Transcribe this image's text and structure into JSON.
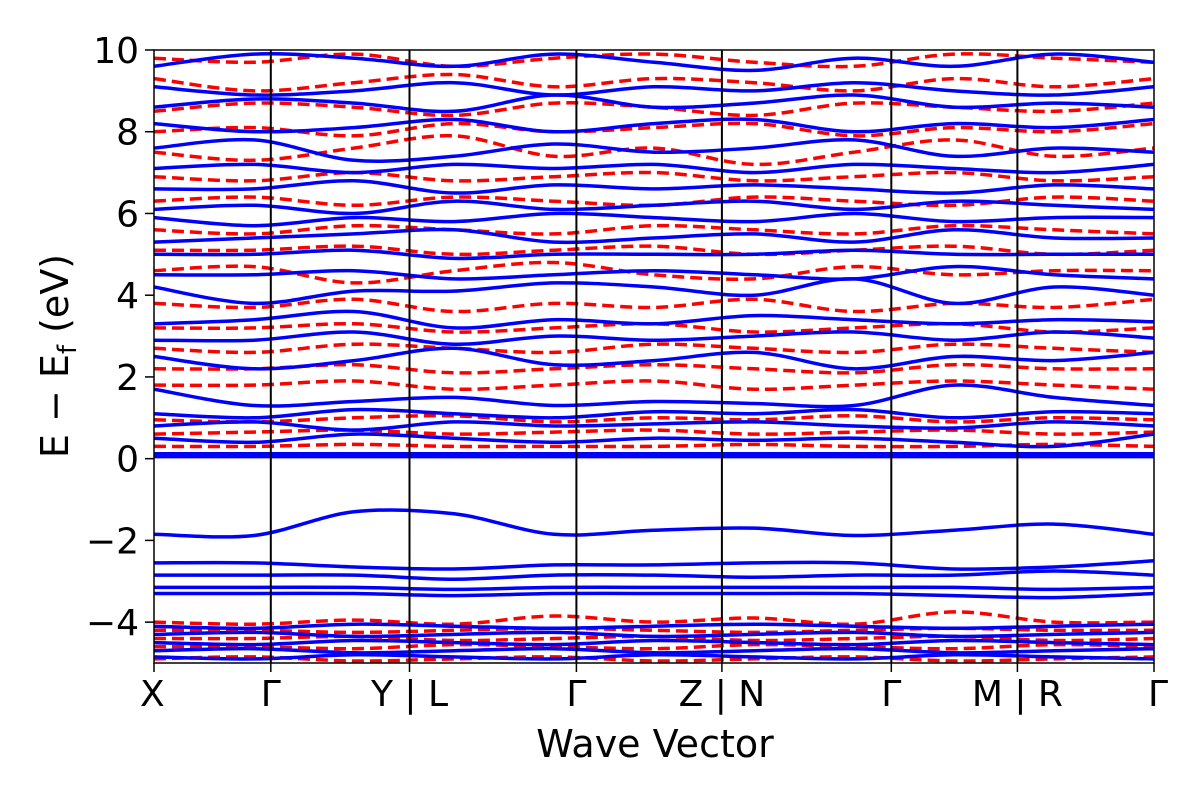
{
  "chart_data": {
    "type": "line",
    "xlabel": "Wave Vector",
    "ylabel_main": "E − E",
    "ylabel_sub": "f",
    "ylabel_unit": " (eV)",
    "ylim": [
      -5,
      10
    ],
    "yticks": [
      -4,
      -2,
      0,
      2,
      4,
      6,
      8,
      10
    ],
    "ytick_labels": [
      "−4",
      "−2",
      "0",
      "2",
      "4",
      "6",
      "8",
      "10"
    ],
    "xlim": [
      0,
      1
    ],
    "kpoint_labels": [
      {
        "x": 0.0,
        "text": "X"
      },
      {
        "x": 0.1168,
        "text": "Γ"
      },
      {
        "x": 0.2555,
        "text": "Y | L"
      },
      {
        "x": 0.4224,
        "text": "Γ"
      },
      {
        "x": 0.5679,
        "text": "Z | N"
      },
      {
        "x": 0.7373,
        "text": "Γ"
      },
      {
        "x": 0.8634,
        "text": "M | R"
      },
      {
        "x": 1.0,
        "text": "Γ"
      }
    ],
    "kpoint_lines": [
      0.1168,
      0.2555,
      0.4224,
      0.5679,
      0.7373,
      0.8634
    ],
    "series": [
      {
        "color": "#0000ff",
        "dash": "solid",
        "role": "spin-up"
      },
      {
        "color": "#ff0000",
        "dash": "dashed",
        "role": "spin-down"
      }
    ],
    "segments": [
      {
        "start": 0.0,
        "end": 0.1168
      },
      {
        "start": 0.1168,
        "end": 0.2555
      },
      {
        "start": 0.2555,
        "end": 0.4224
      },
      {
        "start": 0.4224,
        "end": 0.5679
      },
      {
        "start": 0.5679,
        "end": 0.7373
      },
      {
        "start": 0.7373,
        "end": 0.8634
      },
      {
        "start": 0.8634,
        "end": 1.0
      }
    ],
    "blue_valence_bands": [
      {
        "y": [
          -1.85,
          -1.88,
          -1.3,
          -1.35,
          -1.85,
          -1.75,
          -1.7,
          -1.88,
          -1.75,
          -1.6,
          -1.85
        ]
      },
      {
        "y": [
          -2.55,
          -2.55,
          -2.65,
          -2.7,
          -2.6,
          -2.6,
          -2.55,
          -2.55,
          -2.7,
          -2.65,
          -2.5
        ]
      },
      {
        "y": [
          -2.85,
          -2.85,
          -2.85,
          -2.95,
          -2.85,
          -2.85,
          -2.9,
          -2.85,
          -2.85,
          -2.75,
          -2.85
        ]
      },
      {
        "y": [
          -3.15,
          -3.15,
          -3.15,
          -3.2,
          -3.15,
          -3.15,
          -3.15,
          -3.15,
          -3.15,
          -3.2,
          -3.15
        ]
      },
      {
        "y": [
          -3.3,
          -3.3,
          -3.3,
          -3.35,
          -3.3,
          -3.3,
          -3.3,
          -3.3,
          -3.35,
          -3.4,
          -3.3
        ]
      }
    ],
    "bands_up": [
      {
        "y": [
          0.05,
          0.05,
          0.05,
          0.05,
          0.05,
          0.05,
          0.05,
          0.05,
          0.05,
          0.05,
          0.05
        ]
      },
      {
        "y": [
          0.12,
          0.12,
          0.12,
          0.12,
          0.12,
          0.12,
          0.12,
          0.12,
          0.12,
          0.12,
          0.12
        ]
      },
      {
        "y": [
          0.5,
          0.4,
          0.6,
          0.5,
          0.4,
          0.5,
          0.45,
          0.5,
          0.4,
          0.3,
          0.6
        ]
      },
      {
        "y": [
          0.8,
          0.9,
          0.7,
          0.9,
          0.8,
          0.85,
          0.9,
          0.8,
          0.75,
          0.9,
          0.8
        ]
      },
      {
        "y": [
          1.1,
          1.0,
          1.2,
          1.1,
          1.0,
          1.15,
          1.1,
          1.2,
          1.0,
          1.15,
          1.1
        ]
      },
      {
        "y": [
          1.7,
          1.3,
          1.4,
          1.5,
          1.3,
          1.4,
          1.35,
          1.3,
          1.8,
          1.5,
          1.3
        ]
      },
      {
        "y": [
          2.5,
          2.2,
          2.4,
          2.7,
          2.3,
          2.4,
          2.6,
          2.2,
          2.5,
          2.4,
          2.6
        ]
      },
      {
        "y": [
          2.9,
          2.9,
          3.1,
          2.8,
          3.0,
          2.9,
          3.0,
          3.1,
          2.9,
          3.1,
          2.95
        ]
      },
      {
        "y": [
          3.3,
          3.4,
          3.6,
          3.2,
          3.4,
          3.3,
          3.5,
          3.4,
          3.3,
          3.4,
          3.35
        ]
      },
      {
        "y": [
          4.2,
          3.8,
          4.1,
          4.1,
          4.3,
          4.2,
          4.0,
          4.4,
          3.8,
          4.2,
          4.0
        ]
      },
      {
        "y": [
          4.5,
          4.5,
          4.6,
          4.4,
          4.5,
          4.6,
          4.5,
          4.4,
          4.7,
          4.5,
          4.4
        ]
      },
      {
        "y": [
          5.0,
          5.0,
          5.1,
          4.9,
          5.0,
          5.0,
          5.0,
          5.1,
          5.0,
          5.0,
          5.0
        ]
      },
      {
        "y": [
          5.3,
          5.4,
          5.5,
          5.6,
          5.3,
          5.4,
          5.5,
          5.3,
          5.6,
          5.4,
          5.4
        ]
      },
      {
        "y": [
          5.9,
          5.7,
          5.9,
          5.8,
          6.0,
          5.9,
          5.8,
          6.0,
          5.8,
          5.9,
          5.9
        ]
      },
      {
        "y": [
          6.1,
          6.2,
          6.0,
          6.3,
          6.1,
          6.2,
          6.3,
          6.1,
          6.3,
          6.2,
          6.1
        ]
      },
      {
        "y": [
          6.6,
          6.6,
          6.8,
          6.5,
          6.7,
          6.6,
          6.7,
          6.6,
          6.5,
          6.7,
          6.6
        ]
      },
      {
        "y": [
          7.1,
          7.2,
          7.0,
          7.2,
          7.1,
          7.2,
          7.0,
          7.2,
          7.1,
          7.0,
          7.2
        ]
      },
      {
        "y": [
          7.6,
          7.8,
          7.3,
          7.4,
          7.7,
          7.5,
          7.6,
          7.8,
          7.4,
          7.6,
          7.5
        ]
      },
      {
        "y": [
          8.2,
          8.0,
          8.1,
          8.3,
          8.0,
          8.2,
          8.3,
          8.0,
          8.2,
          8.1,
          8.3
        ]
      },
      {
        "y": [
          8.6,
          8.8,
          8.7,
          8.5,
          8.9,
          8.6,
          8.7,
          8.9,
          8.6,
          8.7,
          8.6
        ]
      },
      {
        "y": [
          9.1,
          8.9,
          9.0,
          9.2,
          8.9,
          9.1,
          9.0,
          9.2,
          9.0,
          8.9,
          9.1
        ]
      },
      {
        "y": [
          9.6,
          9.9,
          9.8,
          9.6,
          9.9,
          9.7,
          9.5,
          9.8,
          9.6,
          9.9,
          9.7
        ]
      }
    ],
    "bands_down": [
      {
        "y": [
          0.3,
          0.3,
          0.35,
          0.3,
          0.3,
          0.3,
          0.35,
          0.3,
          0.3,
          0.35,
          0.3
        ]
      },
      {
        "y": [
          0.6,
          0.65,
          0.7,
          0.6,
          0.65,
          0.7,
          0.6,
          0.65,
          0.7,
          0.6,
          0.65
        ]
      },
      {
        "y": [
          0.95,
          0.9,
          1.0,
          1.05,
          0.9,
          1.0,
          0.95,
          1.05,
          0.9,
          1.0,
          0.95
        ]
      },
      {
        "y": [
          1.8,
          1.8,
          1.9,
          1.7,
          1.8,
          1.9,
          1.7,
          1.8,
          1.9,
          1.8,
          1.7
        ]
      },
      {
        "y": [
          2.2,
          2.2,
          2.3,
          2.1,
          2.2,
          2.3,
          2.2,
          2.1,
          2.3,
          2.2,
          2.2
        ]
      },
      {
        "y": [
          2.7,
          2.6,
          2.8,
          2.7,
          2.6,
          2.8,
          2.7,
          2.6,
          2.8,
          2.7,
          2.6
        ]
      },
      {
        "y": [
          3.2,
          3.2,
          3.3,
          3.1,
          3.2,
          3.3,
          3.1,
          3.2,
          3.3,
          3.1,
          3.2
        ]
      },
      {
        "y": [
          3.8,
          3.7,
          3.9,
          3.6,
          3.8,
          3.7,
          3.9,
          3.6,
          3.8,
          3.7,
          3.9
        ]
      },
      {
        "y": [
          4.6,
          4.7,
          4.3,
          4.6,
          4.8,
          4.5,
          4.4,
          4.7,
          4.5,
          4.6,
          4.6
        ]
      },
      {
        "y": [
          5.1,
          5.1,
          5.2,
          5.0,
          5.1,
          5.2,
          5.0,
          5.1,
          5.2,
          5.0,
          5.1
        ]
      },
      {
        "y": [
          5.6,
          5.5,
          5.7,
          5.6,
          5.5,
          5.7,
          5.6,
          5.5,
          5.7,
          5.6,
          5.5
        ]
      },
      {
        "y": [
          6.3,
          6.4,
          6.2,
          6.4,
          6.3,
          6.2,
          6.4,
          6.3,
          6.2,
          6.4,
          6.3
        ]
      },
      {
        "y": [
          6.9,
          6.8,
          7.0,
          6.8,
          6.9,
          7.0,
          6.8,
          6.9,
          7.0,
          6.8,
          6.9
        ]
      },
      {
        "y": [
          7.5,
          7.3,
          7.6,
          7.9,
          7.4,
          7.6,
          7.2,
          7.5,
          7.8,
          7.4,
          7.6
        ]
      },
      {
        "y": [
          8.0,
          8.1,
          7.9,
          8.2,
          8.0,
          8.1,
          8.2,
          7.9,
          8.1,
          8.0,
          8.2
        ]
      },
      {
        "y": [
          8.5,
          8.7,
          8.6,
          8.4,
          8.7,
          8.6,
          8.4,
          8.7,
          8.6,
          8.5,
          8.7
        ]
      },
      {
        "y": [
          9.3,
          9.0,
          9.2,
          9.4,
          9.1,
          9.3,
          9.2,
          9.0,
          9.3,
          9.1,
          9.3
        ]
      },
      {
        "y": [
          9.8,
          9.7,
          9.9,
          9.6,
          9.8,
          9.9,
          9.7,
          9.6,
          9.9,
          9.8,
          9.7
        ]
      }
    ],
    "core_up": [
      {
        "y": [
          -4.1,
          -4.15,
          -4.05,
          -4.1,
          -4.15,
          -4.1,
          -4.05,
          -4.1,
          -4.15,
          -4.1,
          -4.05
        ]
      },
      {
        "y": [
          -4.3,
          -4.25,
          -4.35,
          -4.3,
          -4.25,
          -4.35,
          -4.3,
          -4.25,
          -4.35,
          -4.3,
          -4.25
        ]
      },
      {
        "y": [
          -4.5,
          -4.55,
          -4.45,
          -4.5,
          -4.55,
          -4.45,
          -4.5,
          -4.55,
          -4.45,
          -4.5,
          -4.55
        ]
      },
      {
        "y": [
          -4.7,
          -4.65,
          -4.75,
          -4.7,
          -4.65,
          -4.75,
          -4.7,
          -4.65,
          -4.75,
          -4.7,
          -4.65
        ]
      },
      {
        "y": [
          -4.85,
          -4.9,
          -4.8,
          -4.85,
          -4.9,
          -4.8,
          -4.85,
          -4.9,
          -4.8,
          -4.85,
          -4.9
        ]
      }
    ],
    "core_down": [
      {
        "y": [
          -4.0,
          -4.05,
          -3.95,
          -4.05,
          -3.85,
          -4.0,
          -3.9,
          -4.05,
          -3.75,
          -4.0,
          -4.0
        ]
      },
      {
        "y": [
          -4.2,
          -4.2,
          -4.25,
          -4.2,
          -4.15,
          -4.2,
          -4.25,
          -4.2,
          -4.15,
          -4.2,
          -4.2
        ]
      },
      {
        "y": [
          -4.4,
          -4.4,
          -4.35,
          -4.45,
          -4.4,
          -4.35,
          -4.45,
          -4.4,
          -4.35,
          -4.45,
          -4.4
        ]
      },
      {
        "y": [
          -4.6,
          -4.6,
          -4.65,
          -4.55,
          -4.6,
          -4.65,
          -4.55,
          -4.6,
          -4.65,
          -4.55,
          -4.6
        ]
      },
      {
        "y": [
          -4.9,
          -4.85,
          -4.95,
          -4.9,
          -4.85,
          -4.95,
          -4.9,
          -4.85,
          -4.95,
          -4.9,
          -4.85
        ]
      }
    ]
  }
}
